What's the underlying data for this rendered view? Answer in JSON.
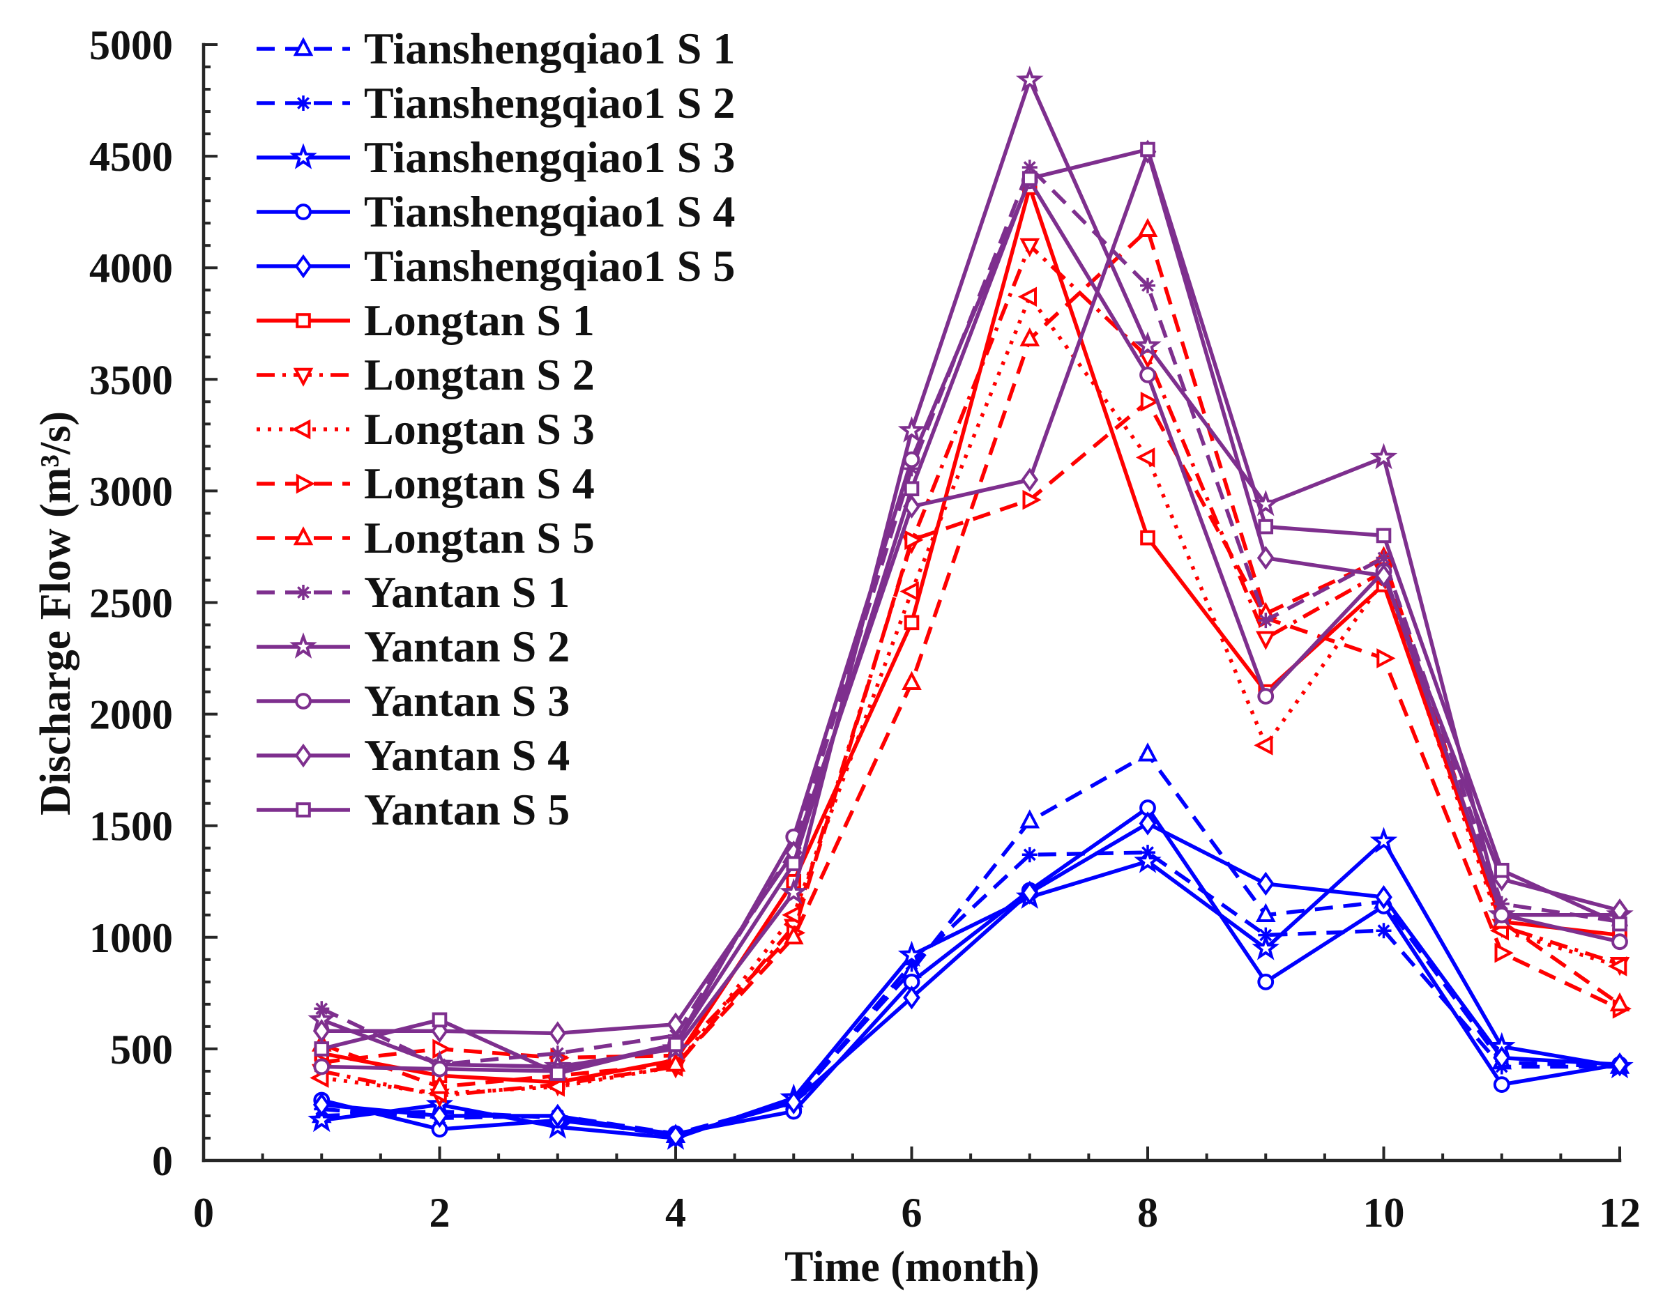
{
  "chart_data": {
    "type": "line",
    "xlabel": "Time (month)",
    "ylabel": "Discharge Flow (m³/s)",
    "xlim": [
      0,
      12
    ],
    "ylim": [
      0,
      5000
    ],
    "x_ticks": [
      0,
      2,
      4,
      6,
      8,
      10,
      12
    ],
    "y_ticks": [
      0,
      500,
      1000,
      1500,
      2000,
      2500,
      3000,
      3500,
      4000,
      4500,
      5000
    ],
    "grid": false,
    "legend_location": "top-left",
    "x": [
      1,
      2,
      3,
      4,
      5,
      6,
      7,
      8,
      9,
      10,
      11,
      12
    ],
    "series": [
      {
        "name": "Tianshengqiao1 S 1",
        "color": "#0000ff",
        "line_style": "dashed",
        "marker": "triangle-up",
        "values": [
          200,
          220,
          190,
          110,
          270,
          850,
          1520,
          1820,
          1100,
          1160,
          440,
          420
        ]
      },
      {
        "name": "Tianshengqiao1 S 2",
        "color": "#0000ff",
        "line_style": "dashed",
        "marker": "asterisk",
        "values": [
          230,
          190,
          200,
          120,
          260,
          880,
          1370,
          1380,
          1010,
          1030,
          420,
          420
        ]
      },
      {
        "name": "Tianshengqiao1 S 3",
        "color": "#0000ff",
        "line_style": "solid",
        "marker": "pentagram",
        "values": [
          180,
          250,
          150,
          100,
          280,
          920,
          1180,
          1340,
          950,
          1430,
          510,
          420
        ]
      },
      {
        "name": "Tianshengqiao1 S 4",
        "color": "#0000ff",
        "line_style": "solid",
        "marker": "circle",
        "values": [
          270,
          140,
          180,
          120,
          220,
          800,
          1210,
          1580,
          800,
          1140,
          340,
          430
        ]
      },
      {
        "name": "Tianshengqiao1 S 5",
        "color": "#0000ff",
        "line_style": "solid",
        "marker": "diamond",
        "values": [
          250,
          200,
          200,
          110,
          260,
          730,
          1200,
          1510,
          1240,
          1180,
          460,
          430
        ]
      },
      {
        "name": "Longtan S 1",
        "color": "#ff0000",
        "line_style": "solid",
        "marker": "square",
        "values": [
          480,
          380,
          350,
          450,
          1250,
          2410,
          4360,
          2790,
          2100,
          2580,
          1070,
          1010
        ]
      },
      {
        "name": "Longtan S 2",
        "color": "#ff0000",
        "line_style": "dash-dot",
        "marker": "triangle-down",
        "values": [
          400,
          290,
          340,
          420,
          1050,
          2770,
          4100,
          3600,
          2340,
          2640,
          1050,
          880
        ]
      },
      {
        "name": "Longtan S 3",
        "color": "#ff0000",
        "line_style": "dotted",
        "marker": "triangle-left",
        "values": [
          370,
          300,
          330,
          420,
          1100,
          2550,
          3870,
          3150,
          1860,
          2600,
          1030,
          870
        ]
      },
      {
        "name": "Longtan S 4",
        "color": "#ff0000",
        "line_style": "dashed",
        "marker": "triangle-right",
        "values": [
          440,
          500,
          460,
          470,
          1020,
          2780,
          2960,
          3400,
          2430,
          2250,
          930,
          680
        ]
      },
      {
        "name": "Longtan S 5",
        "color": "#ff0000",
        "line_style": "dashed",
        "marker": "triangle-up",
        "values": [
          520,
          330,
          380,
          430,
          1000,
          2140,
          3680,
          4170,
          2450,
          2700,
          1070,
          700
        ]
      },
      {
        "name": "Yantan S 1",
        "color": "#7e2f8e",
        "line_style": "dashed",
        "marker": "asterisk",
        "values": [
          680,
          430,
          480,
          560,
          1400,
          3100,
          4450,
          3920,
          2420,
          2700,
          1150,
          1070
        ]
      },
      {
        "name": "Yantan S 2",
        "color": "#7e2f8e",
        "line_style": "solid",
        "marker": "pentagram",
        "values": [
          630,
          430,
          420,
          500,
          1200,
          3270,
          4840,
          3650,
          2940,
          3150,
          1100,
          1100
        ]
      },
      {
        "name": "Yantan S 3",
        "color": "#7e2f8e",
        "line_style": "solid",
        "marker": "circle",
        "values": [
          420,
          410,
          400,
          520,
          1450,
          3140,
          4390,
          3520,
          2080,
          2640,
          1100,
          980
        ]
      },
      {
        "name": "Yantan S 4",
        "color": "#7e2f8e",
        "line_style": "solid",
        "marker": "diamond",
        "values": [
          580,
          580,
          570,
          610,
          1380,
          2930,
          3050,
          4520,
          2700,
          2620,
          1260,
          1120
        ]
      },
      {
        "name": "Yantan S 5",
        "color": "#7e2f8e",
        "line_style": "solid",
        "marker": "square",
        "values": [
          500,
          630,
          390,
          520,
          1330,
          3010,
          4400,
          4530,
          2840,
          2800,
          1300,
          1060
        ]
      }
    ]
  }
}
